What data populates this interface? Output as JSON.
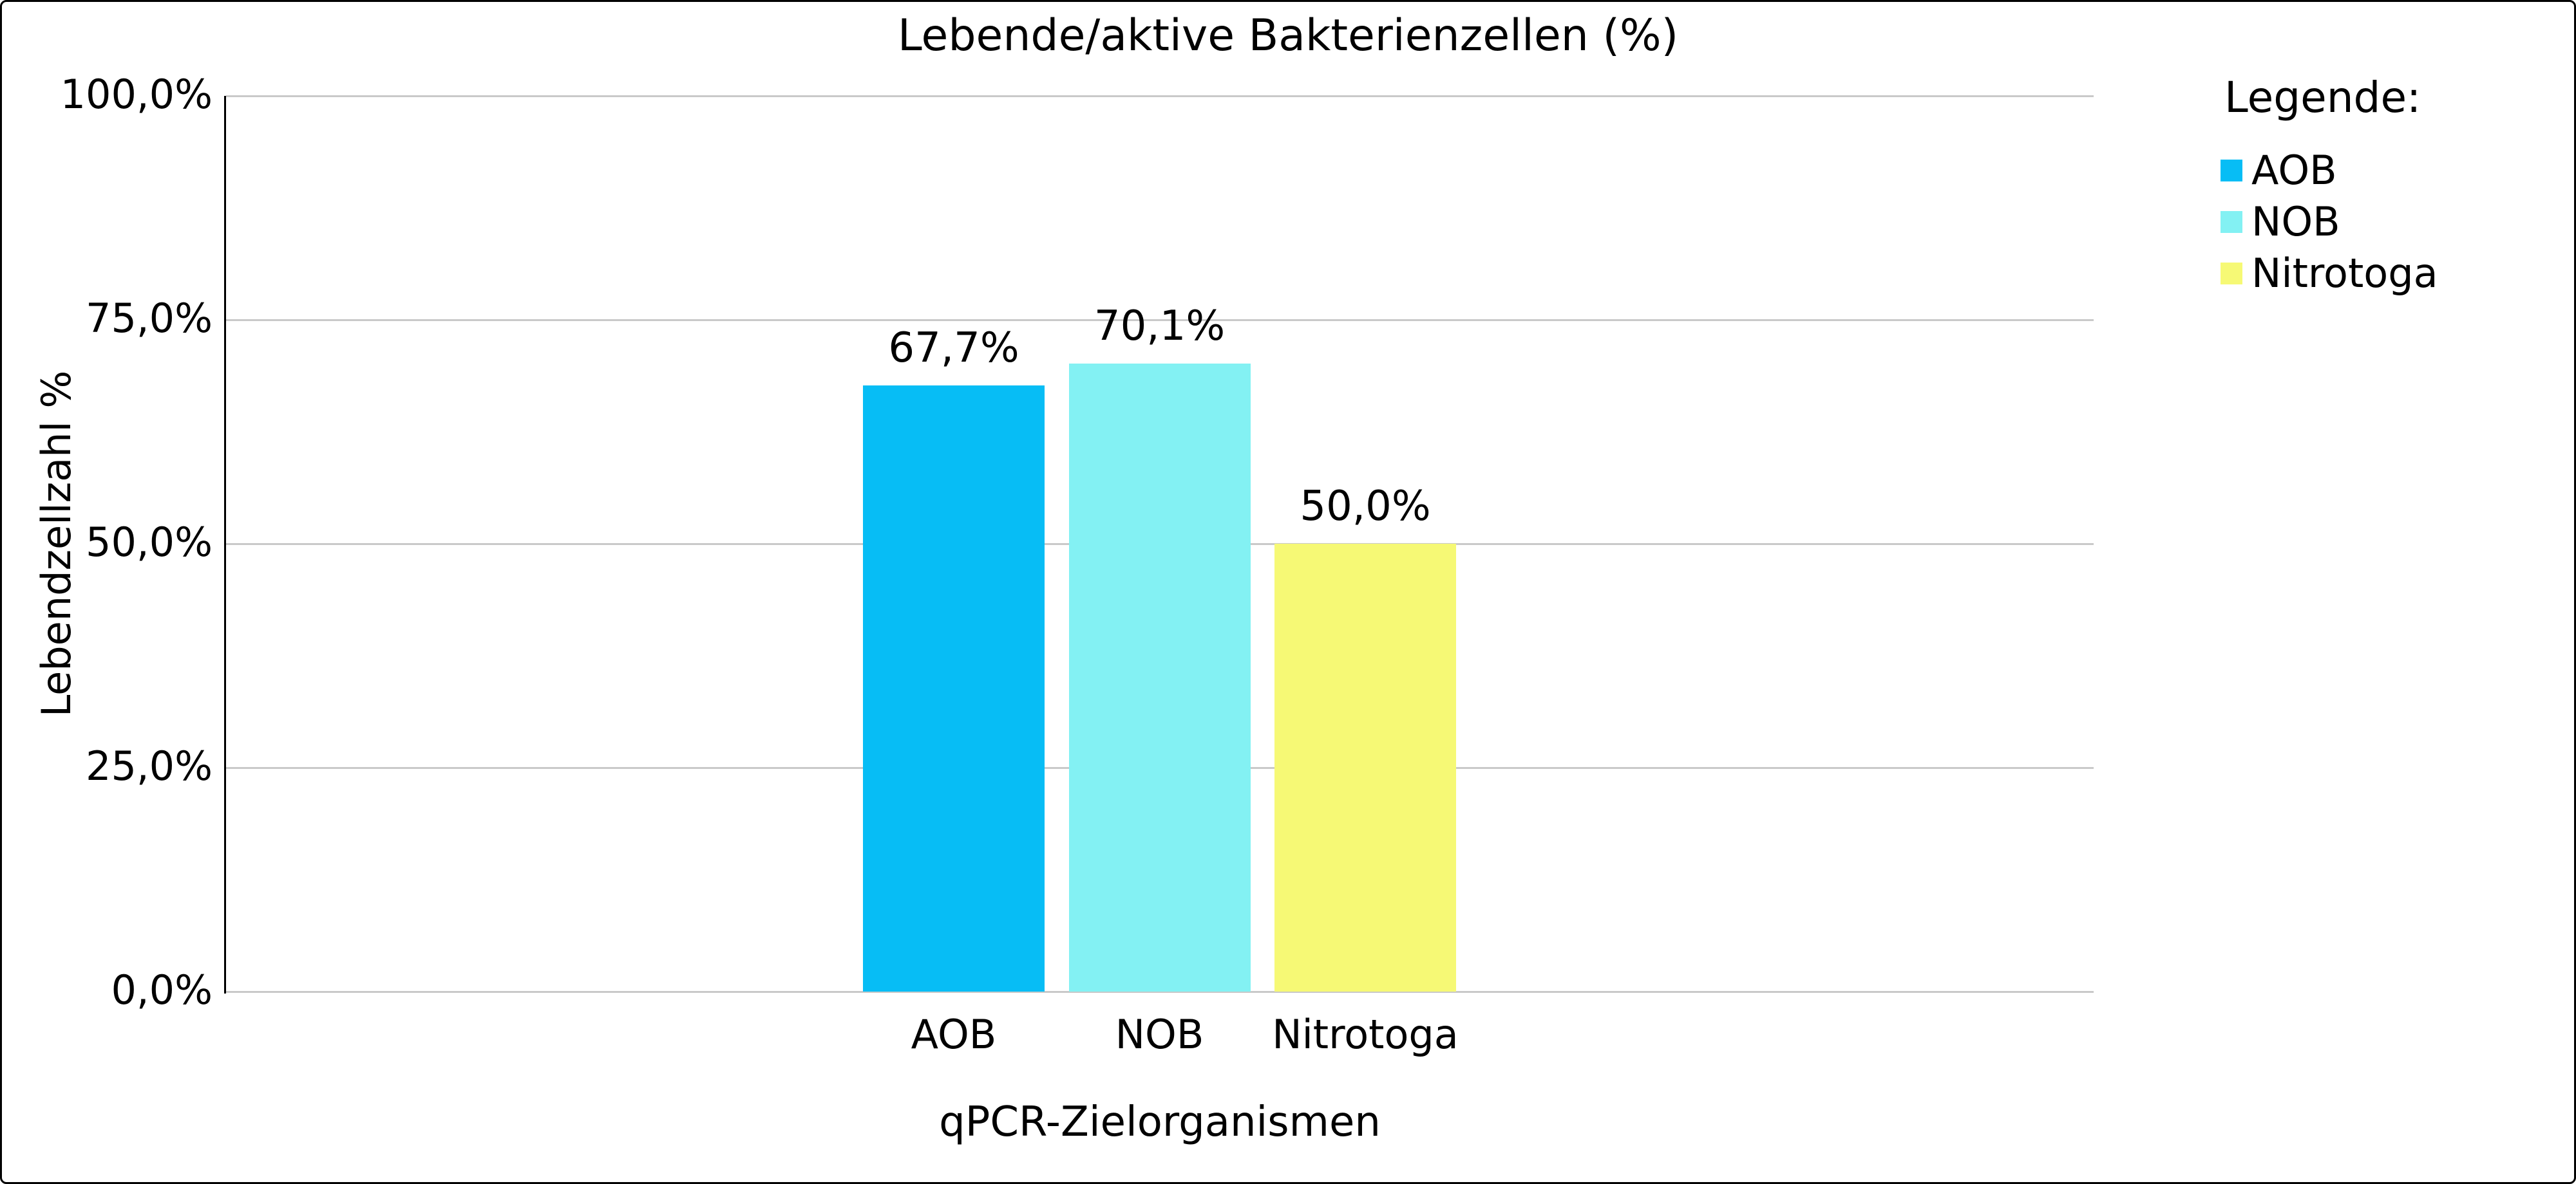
{
  "title": "Lebende/aktive Bakterienzellen (%)",
  "chart_data": {
    "type": "bar",
    "title": "Lebende/aktive Bakterienzellen (%)",
    "categories": [
      "AOB",
      "NOB",
      "Nitrotoga"
    ],
    "values": [
      67.7,
      70.1,
      50.0
    ],
    "value_labels": [
      "67,7%",
      "70,1%",
      "50,0%"
    ],
    "bar_colors": [
      "#07bdf5",
      "#83f1f3",
      "#f6f975"
    ],
    "xlabel": "qPCR-Zielorganismen",
    "ylabel": "Lebendzellzahl %",
    "ylim": [
      0,
      100
    ],
    "yticks": [
      {
        "value": 0,
        "label": "0,0%"
      },
      {
        "value": 25,
        "label": "25,0%"
      },
      {
        "value": 50,
        "label": "50,0%"
      },
      {
        "value": 75,
        "label": "75,0%"
      },
      {
        "value": 100,
        "label": "100,0%"
      }
    ],
    "grid": "horizontal-only",
    "legend": {
      "position": "top-right",
      "title": "Legende:",
      "items": [
        {
          "label": "AOB",
          "color": "#07bdf5"
        },
        {
          "label": "NOB",
          "color": "#83f1f3"
        },
        {
          "label": "Nitrotoga",
          "color": "#f6f975"
        }
      ]
    }
  },
  "colors": {
    "background": "#ffffff",
    "border": "#000000",
    "gridline": "#c9c9c9",
    "axis_line": "#000000",
    "text": "#000000"
  }
}
